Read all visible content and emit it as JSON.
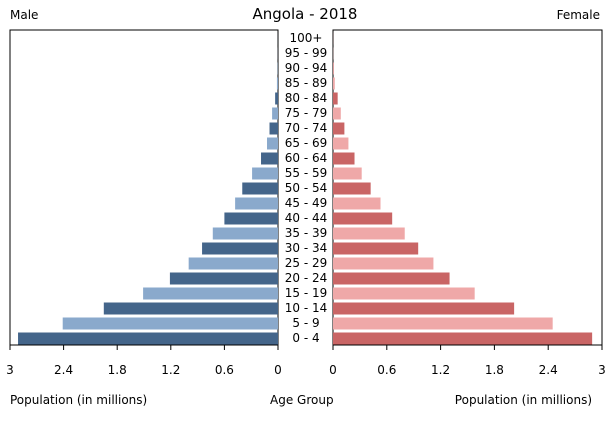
{
  "chart_data": {
    "type": "bar",
    "title": "Angola - 2018",
    "left_label": "Male",
    "right_label": "Female",
    "xlabel_left": "Population (in millions)",
    "xlabel_center": "Age Group",
    "xlabel_right": "Population (in millions)",
    "xlim": [
      0,
      3
    ],
    "tick_labels_male": [
      "3",
      "2.4",
      "1.8",
      "1.2",
      "0.6",
      "0"
    ],
    "tick_values_male": [
      3,
      2.4,
      1.8,
      1.2,
      0.6,
      0
    ],
    "tick_labels_female": [
      "0",
      "0.6",
      "1.2",
      "1.8",
      "2.4",
      "3"
    ],
    "tick_values_female": [
      0,
      0.6,
      1.2,
      1.8,
      2.4,
      3
    ],
    "categories": [
      "100+",
      "95 - 99",
      "90 - 94",
      "85 - 89",
      "80 - 84",
      "75 - 79",
      "70 - 74",
      "65 - 69",
      "60 - 64",
      "55 - 59",
      "50 - 54",
      "45 - 49",
      "40 - 44",
      "35 - 39",
      "30 - 34",
      "25 - 29",
      "20 - 24",
      "15 - 19",
      "10 - 14",
      "5 - 9",
      "0 - 4"
    ],
    "series": [
      {
        "name": "Male",
        "values": [
          0.0005,
          0.001,
          0.004,
          0.012,
          0.032,
          0.066,
          0.095,
          0.123,
          0.19,
          0.29,
          0.4,
          0.48,
          0.6,
          0.73,
          0.85,
          1.0,
          1.21,
          1.51,
          1.95,
          2.41,
          2.91
        ]
      },
      {
        "name": "Female",
        "values": [
          0.001,
          0.002,
          0.007,
          0.02,
          0.052,
          0.087,
          0.127,
          0.172,
          0.24,
          0.32,
          0.42,
          0.53,
          0.66,
          0.8,
          0.95,
          1.12,
          1.3,
          1.58,
          2.02,
          2.45,
          2.89
        ]
      }
    ],
    "colors": {
      "male_dark": "#44658a",
      "male_light": "#8aa9cc",
      "female_dark": "#c96565",
      "female_light": "#efa8a8"
    },
    "grid": false,
    "legend": "none"
  }
}
